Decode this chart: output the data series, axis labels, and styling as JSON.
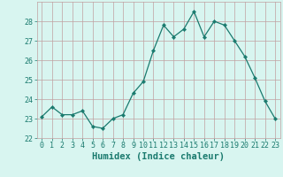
{
  "x": [
    0,
    1,
    2,
    3,
    4,
    5,
    6,
    7,
    8,
    9,
    10,
    11,
    12,
    13,
    14,
    15,
    16,
    17,
    18,
    19,
    20,
    21,
    22,
    23
  ],
  "y": [
    23.1,
    23.6,
    23.2,
    23.2,
    23.4,
    22.6,
    22.5,
    23.0,
    23.2,
    24.3,
    24.9,
    26.5,
    27.8,
    27.2,
    27.6,
    28.5,
    27.2,
    28.0,
    27.8,
    27.0,
    26.2,
    25.1,
    23.9,
    23.0
  ],
  "line_color": "#1a7a6e",
  "marker": "D",
  "marker_size": 2.2,
  "bg_color": "#d8f5f0",
  "grid_color": "#c0a0a0",
  "xlabel": "Humidex (Indice chaleur)",
  "ylim": [
    22,
    29
  ],
  "xlim": [
    -0.5,
    23.5
  ],
  "yticks": [
    22,
    23,
    24,
    25,
    26,
    27,
    28
  ],
  "xticks": [
    0,
    1,
    2,
    3,
    4,
    5,
    6,
    7,
    8,
    9,
    10,
    11,
    12,
    13,
    14,
    15,
    16,
    17,
    18,
    19,
    20,
    21,
    22,
    23
  ],
  "tick_color": "#1a7a6e",
  "label_color": "#1a7a6e",
  "xlabel_fontsize": 7.5,
  "tick_fontsize": 6.0
}
